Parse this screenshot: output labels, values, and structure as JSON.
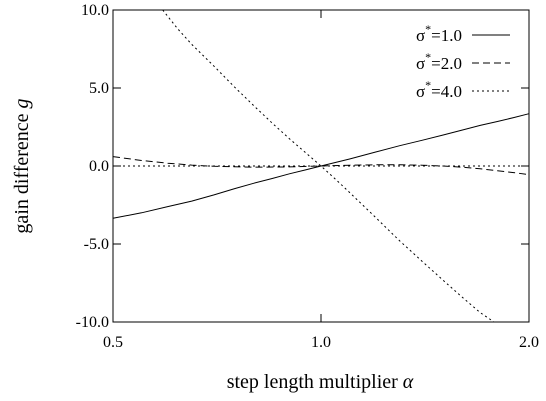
{
  "chart_data": {
    "type": "line",
    "title": "",
    "xlabel": "step length multiplier",
    "xlabel_symbol": "α",
    "ylabel": "gain difference",
    "ylabel_symbol": "g",
    "xlim": [
      0.5,
      2.0
    ],
    "ylim": [
      -10.0,
      10.0
    ],
    "x_scale": "log",
    "x_ticks": [
      0.5,
      1.0,
      2.0
    ],
    "x_tick_labels": [
      "0.5",
      "1.0",
      "2.0"
    ],
    "y_ticks": [
      -10,
      -5,
      0,
      5,
      10
    ],
    "y_tick_labels": [
      "-10.0",
      "-5.0",
      "0.0",
      "5.0",
      "10.0"
    ],
    "grid": false,
    "legend_position": "top-right",
    "series": [
      {
        "name": "σ*=1.0",
        "legend_symbol": "σ",
        "legend_superscript": "*",
        "legend_text": "=1.0",
        "style": "solid",
        "x": [
          0.5,
          0.55,
          0.6,
          0.65,
          0.7,
          0.75,
          0.8,
          0.85,
          0.9,
          0.95,
          1.0,
          1.1,
          1.2,
          1.3,
          1.4,
          1.5,
          1.6,
          1.7,
          1.8,
          1.9,
          2.0
        ],
        "y": [
          -3.35,
          -3.0,
          -2.6,
          -2.25,
          -1.85,
          -1.45,
          -1.1,
          -0.8,
          -0.5,
          -0.25,
          0.0,
          0.45,
          0.9,
          1.3,
          1.65,
          1.98,
          2.3,
          2.6,
          2.85,
          3.1,
          3.35
        ]
      },
      {
        "name": "σ*=2.0",
        "legend_symbol": "σ",
        "legend_superscript": "*",
        "legend_text": "=2.0",
        "style": "dashed",
        "x": [
          0.5,
          0.55,
          0.6,
          0.65,
          0.7,
          0.8,
          0.9,
          1.0,
          1.1,
          1.2,
          1.3,
          1.4,
          1.5,
          1.6,
          1.7,
          1.8,
          1.9,
          2.0
        ],
        "y": [
          0.6,
          0.35,
          0.18,
          0.06,
          -0.02,
          -0.08,
          -0.06,
          0.0,
          0.05,
          0.08,
          0.08,
          0.05,
          0.0,
          -0.08,
          -0.18,
          -0.3,
          -0.42,
          -0.55
        ]
      },
      {
        "name": "σ*=4.0",
        "legend_symbol": "σ",
        "legend_superscript": "*",
        "legend_text": "=4.0",
        "style": "dotted",
        "x": [
          0.5,
          0.6,
          0.7,
          0.8,
          0.9,
          1.0,
          1.1,
          1.2,
          1.4,
          1.6,
          1.8,
          2.0
        ],
        "y": [
          0.0,
          0.0,
          0.0,
          0.0,
          0.0,
          0.0,
          0.0,
          0.0,
          0.0,
          0.0,
          0.0,
          0.0
        ]
      },
      {
        "name": "",
        "style": "dotted",
        "x": [
          0.59,
          0.62,
          0.65,
          0.7,
          0.75,
          0.8,
          0.85,
          0.9,
          0.95,
          1.0,
          1.05,
          1.1,
          1.2,
          1.3,
          1.4,
          1.5,
          1.6,
          1.7,
          1.78
        ],
        "y": [
          10.0,
          8.8,
          7.8,
          6.4,
          5.05,
          3.85,
          2.75,
          1.75,
          0.85,
          0.0,
          -0.85,
          -1.7,
          -3.3,
          -4.8,
          -6.1,
          -7.3,
          -8.4,
          -9.4,
          -10.0
        ]
      }
    ]
  }
}
